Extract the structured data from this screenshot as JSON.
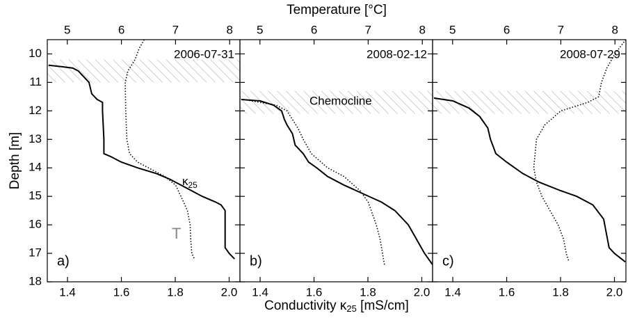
{
  "chart_data": [
    {
      "type": "line",
      "panel": "a)",
      "date": "2006-07-31",
      "ylabel": "Depth [m]",
      "xlabel": [
        "Conductivity κ",
        "25",
        " [mS/cm]"
      ],
      "x2label": "Temperature [°C]",
      "annotations": {
        "kappa": [
          "κ",
          "25"
        ],
        "temp": "T"
      },
      "ylim": [
        18,
        9.5
      ],
      "yticks": [
        10,
        11,
        12,
        13,
        14,
        15,
        16,
        17,
        18
      ],
      "xlim": [
        1.325,
        2.04
      ],
      "xticks": [
        1.4,
        1.6,
        1.8,
        {
          "value": 2.0,
          "label": "2.0"
        }
      ],
      "x2lim": [
        4.63,
        8.19
      ],
      "x2ticks": [
        5,
        6,
        7,
        8
      ],
      "hatch": [
        10.2,
        11.0
      ],
      "series": [
        {
          "axis": "x",
          "color": "#000000",
          "dash": "solid",
          "y": [
            10.4,
            10.45,
            10.5,
            10.6,
            10.8,
            11.0,
            11.4,
            11.6,
            11.7,
            12.0,
            13.0,
            13.5,
            13.6,
            13.8,
            14.0,
            14.2,
            14.4,
            14.6,
            14.8,
            15.0,
            15.2,
            15.3,
            15.5,
            16.0,
            16.8,
            17.0,
            17.2
          ],
          "x": [
            1.33,
            1.38,
            1.42,
            1.44,
            1.46,
            1.48,
            1.49,
            1.51,
            1.53,
            1.53,
            1.535,
            1.535,
            1.56,
            1.6,
            1.66,
            1.73,
            1.78,
            1.82,
            1.86,
            1.9,
            1.95,
            1.97,
            1.985,
            1.985,
            1.985,
            2.0,
            2.02
          ]
        },
        {
          "axis": "x2",
          "color": "#000000",
          "dash": "dotted",
          "y": [
            9.5,
            9.8,
            10.2,
            10.6,
            11.0,
            12.0,
            13.0,
            13.5,
            13.8,
            14.0,
            14.3,
            14.6,
            15.0,
            15.5,
            16.0,
            16.5,
            17.0,
            17.2
          ],
          "x": [
            6.42,
            6.33,
            6.25,
            6.12,
            6.07,
            6.08,
            6.1,
            6.15,
            6.3,
            6.5,
            6.8,
            7.0,
            7.1,
            7.22,
            7.27,
            7.28,
            7.3,
            7.35
          ]
        }
      ]
    },
    {
      "type": "line",
      "panel": "b)",
      "date": "2008-02-12",
      "chemocline": "Chemocline",
      "ylim": [
        18,
        9.5
      ],
      "xlim": [
        1.325,
        2.04
      ],
      "xticks": [
        1.4,
        1.6,
        1.8,
        {
          "value": 2.0,
          "label": "2.0"
        }
      ],
      "x2lim": [
        4.63,
        8.19
      ],
      "x2ticks": [
        5,
        6,
        7,
        8
      ],
      "hatch": [
        11.3,
        12.1
      ],
      "series": [
        {
          "axis": "x",
          "color": "#000000",
          "dash": "solid",
          "y": [
            11.6,
            11.65,
            11.8,
            12.0,
            12.3,
            12.5,
            12.8,
            13.2,
            13.5,
            13.8,
            14.0,
            14.3,
            14.6,
            14.9,
            15.2,
            15.5,
            16.0,
            16.5,
            17.0,
            17.4
          ],
          "x": [
            1.33,
            1.4,
            1.45,
            1.48,
            1.49,
            1.5,
            1.52,
            1.53,
            1.56,
            1.58,
            1.61,
            1.65,
            1.71,
            1.78,
            1.85,
            1.9,
            1.95,
            1.98,
            2.01,
            2.04
          ]
        },
        {
          "axis": "x2",
          "color": "#000000",
          "dash": "dotted",
          "y": [
            11.6,
            11.8,
            12.0,
            12.3,
            12.6,
            13.0,
            13.5,
            14.0,
            14.3,
            14.8,
            15.2,
            16.0,
            16.5,
            17.4
          ],
          "x": [
            4.7,
            5.3,
            5.5,
            5.6,
            5.7,
            5.8,
            5.95,
            6.25,
            6.55,
            6.85,
            7.0,
            7.15,
            7.22,
            7.3
          ]
        }
      ]
    },
    {
      "type": "line",
      "panel": "c)",
      "date": "2008-07-29",
      "ylim": [
        18,
        9.5
      ],
      "xlim": [
        1.325,
        2.04
      ],
      "xticks": [
        1.4,
        1.6,
        1.8,
        {
          "value": 2.0,
          "label": "2.0"
        }
      ],
      "x2lim": [
        4.63,
        8.19
      ],
      "x2ticks": [
        5,
        6,
        7,
        8
      ],
      "hatch": [
        11.3,
        12.1
      ],
      "series": [
        {
          "axis": "x",
          "color": "#000000",
          "dash": "solid",
          "y": [
            11.55,
            11.65,
            11.9,
            12.2,
            12.6,
            13.0,
            13.5,
            13.8,
            14.2,
            14.5,
            14.8,
            15.0,
            15.3,
            15.8,
            16.3,
            16.8,
            17.0,
            17.3
          ],
          "x": [
            1.33,
            1.4,
            1.46,
            1.5,
            1.53,
            1.54,
            1.56,
            1.6,
            1.66,
            1.72,
            1.8,
            1.86,
            1.92,
            1.96,
            1.97,
            1.98,
            2.0,
            2.04
          ]
        },
        {
          "axis": "x2",
          "color": "#000000",
          "dash": "dotted",
          "y": [
            9.5,
            10.0,
            10.5,
            11.0,
            11.5,
            11.7,
            12.0,
            12.5,
            13.0,
            14.0,
            14.5,
            15.0,
            15.5,
            16.0,
            16.5,
            17.0,
            17.3
          ],
          "x": [
            8.2,
            8.0,
            7.85,
            7.75,
            7.7,
            7.5,
            7.0,
            6.7,
            6.55,
            6.5,
            6.55,
            6.65,
            6.8,
            6.95,
            7.05,
            7.1,
            7.15
          ]
        }
      ]
    }
  ]
}
